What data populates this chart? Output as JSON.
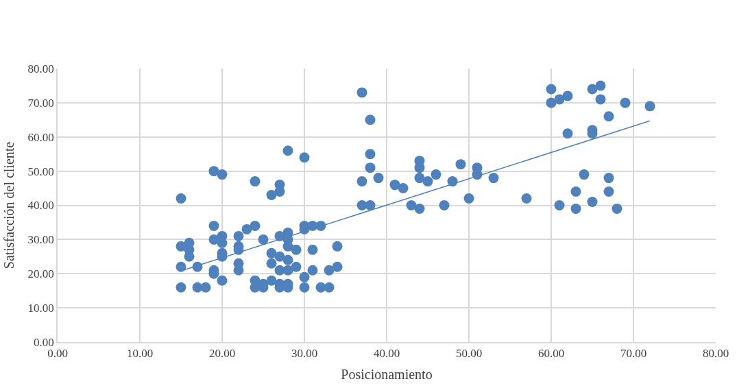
{
  "chart_data": {
    "type": "scatter",
    "xlabel": "Posicionamiento",
    "ylabel": "Satisfacción del cliente",
    "xlim": [
      0,
      80
    ],
    "ylim": [
      0,
      80
    ],
    "xticks": [
      {
        "value": 0,
        "label": "0.00"
      },
      {
        "value": 10,
        "label": "10.00"
      },
      {
        "value": 20,
        "label": "20.00"
      },
      {
        "value": 30,
        "label": "30.00"
      },
      {
        "value": 40,
        "label": "40.00"
      },
      {
        "value": 50,
        "label": "50.00"
      },
      {
        "value": 60,
        "label": "60.00"
      },
      {
        "value": 70,
        "label": "70.00"
      },
      {
        "value": 80,
        "label": "80.00"
      }
    ],
    "yticks": [
      {
        "value": 0,
        "label": "0.00"
      },
      {
        "value": 10,
        "label": "10.00"
      },
      {
        "value": 20,
        "label": "20.00"
      },
      {
        "value": 30,
        "label": "30.00"
      },
      {
        "value": 40,
        "label": "40.00"
      },
      {
        "value": 50,
        "label": "50.00"
      },
      {
        "value": 60,
        "label": "60.00"
      },
      {
        "value": 70,
        "label": "70.00"
      },
      {
        "value": 80,
        "label": "80.00"
      }
    ],
    "grid": true,
    "marker": "circle",
    "series": [
      {
        "color": "#4f81bd",
        "x": [
          15,
          15,
          15,
          15,
          16,
          16,
          16,
          17,
          17,
          18,
          19,
          19,
          19,
          19,
          19,
          20,
          20,
          20,
          20,
          20,
          20,
          22,
          22,
          22,
          22,
          22,
          23,
          24,
          24,
          24,
          24,
          25,
          25,
          25,
          26,
          26,
          26,
          26,
          27,
          27,
          27,
          27,
          27,
          27,
          27,
          28,
          28,
          28,
          28,
          28,
          28,
          28,
          28,
          29,
          29,
          30,
          30,
          30,
          30,
          30,
          31,
          31,
          31,
          32,
          32,
          33,
          33,
          34,
          34,
          37,
          37,
          37,
          38,
          38,
          38,
          38,
          39,
          41,
          42,
          43,
          44,
          44,
          44,
          44,
          45,
          46,
          47,
          48,
          49,
          50,
          51,
          51,
          53,
          57,
          60,
          60,
          61,
          62,
          62,
          61,
          63,
          63,
          64,
          65,
          65,
          65,
          65,
          66,
          66,
          67,
          67,
          67,
          68,
          69,
          72
        ],
        "values": [
          42,
          28,
          22,
          16,
          29,
          27,
          25,
          22,
          16,
          16,
          50,
          34,
          30,
          21,
          20,
          49,
          31,
          29,
          26,
          25,
          18,
          31,
          28,
          27,
          23,
          21,
          33,
          34,
          47,
          18,
          16,
          30,
          17,
          16,
          43,
          26,
          23,
          18,
          46,
          44,
          31,
          25,
          21,
          17,
          16,
          56,
          32,
          30,
          28,
          24,
          21,
          17,
          16,
          27,
          22,
          54,
          34,
          33,
          19,
          16,
          34,
          27,
          21,
          34,
          16,
          21,
          16,
          28,
          22,
          73,
          47,
          40,
          65,
          55,
          51,
          40,
          48,
          46,
          45,
          40,
          53,
          51,
          48,
          39,
          47,
          49,
          40,
          47,
          52,
          42,
          51,
          49,
          48,
          42,
          74,
          70,
          71,
          72,
          61,
          40,
          44,
          39,
          49,
          74,
          62,
          61,
          41,
          75,
          71,
          66,
          48,
          44,
          39,
          70,
          69
        ]
      },
      {
        "type": "line",
        "color": "#4f81bd",
        "marker": "none",
        "line_style": "solid",
        "x": [
          15,
          72
        ],
        "values": [
          20.8,
          64.7
        ]
      }
    ]
  }
}
